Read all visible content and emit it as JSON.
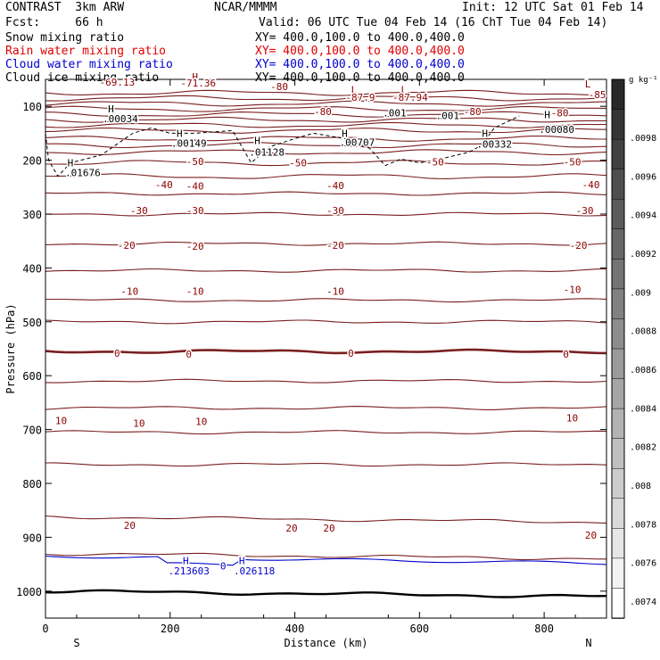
{
  "header": {
    "title_left": "CONTRAST  3km ARW",
    "center": "NCAR/MMMM",
    "init": "Init: 12 UTC Sat 01 Feb 14",
    "fcst": "Fcst:     66 h",
    "valid": "Valid: 06 UTC Tue 04 Feb 14 (16 ChT Tue 04 Feb 14)",
    "fields": [
      {
        "name": "Snow mixing ratio",
        "xy": "XY= 400.0,100.0 to 400.0,400.0",
        "color": "#000000"
      },
      {
        "name": "Rain water mixing ratio",
        "xy": "XY= 400.0,100.0 to 400.0,400.0",
        "color": "#e00000"
      },
      {
        "name": "Cloud water mixing ratio",
        "xy": "XY= 400.0,100.0 to 400.0,400.0",
        "color": "#0000cc"
      },
      {
        "name": "Cloud ice mixing ratio",
        "xy": "XY= 400.0,100.0 to 400.0,400.0",
        "color": "#000000"
      }
    ]
  },
  "chart_data": {
    "type": "contour",
    "xlabel": "Distance (km)",
    "ylabel": "Pressure (hPa)",
    "xlim": [
      0,
      900
    ],
    "ylim": [
      1050,
      50
    ],
    "x_ticks": [
      0,
      200,
      400,
      600,
      800
    ],
    "y_ticks": [
      100,
      200,
      300,
      400,
      500,
      600,
      700,
      800,
      900,
      1000
    ],
    "x_endpoints": {
      "left": "S",
      "right": "N"
    },
    "colorbar": {
      "unit": "g kg⁻¹",
      "labels": [
        ".0098",
        ".0096",
        ".0094",
        ".0092",
        ".009",
        ".0088",
        ".0086",
        ".0084",
        ".0082",
        ".008",
        ".0078",
        ".0076",
        ".0074"
      ]
    },
    "contour_labels": [
      {
        "text": "-69.13",
        "x": 115,
        "p": 55,
        "color": "#8b0000"
      },
      {
        "text": "H",
        "x": 240,
        "p": 45,
        "color": "#8b0000"
      },
      {
        "text": "-71.36",
        "x": 245,
        "p": 57,
        "color": "#8b0000"
      },
      {
        "text": "-80",
        "x": 375,
        "p": 63,
        "color": "#8b0000"
      },
      {
        "text": "L",
        "x": 495,
        "p": 69,
        "color": "#8b0000"
      },
      {
        "text": "-87.9",
        "x": 505,
        "p": 83,
        "color": "#8b0000"
      },
      {
        "text": "L",
        "x": 575,
        "p": 69,
        "color": "#8b0000"
      },
      {
        "text": "-87.94",
        "x": 585,
        "p": 83,
        "color": "#8b0000"
      },
      {
        "text": "L",
        "x": 870,
        "p": 58,
        "color": "#8b0000"
      },
      {
        "text": "-85",
        "x": 885,
        "p": 78,
        "color": "#8b0000"
      },
      {
        "text": "-80",
        "x": 445,
        "p": 110,
        "color": "#8b0000"
      },
      {
        "text": "-80",
        "x": 685,
        "p": 110,
        "color": "#8b0000"
      },
      {
        "text": "-80",
        "x": 825,
        "p": 112,
        "color": "#8b0000"
      },
      {
        "text": "-50",
        "x": 240,
        "p": 202,
        "color": "#8b0000"
      },
      {
        "text": "-50",
        "x": 405,
        "p": 205,
        "color": "#8b0000"
      },
      {
        "text": "-50",
        "x": 625,
        "p": 203,
        "color": "#8b0000"
      },
      {
        "text": "-50",
        "x": 845,
        "p": 203,
        "color": "#8b0000"
      },
      {
        "text": "-40",
        "x": 190,
        "p": 245,
        "color": "#8b0000"
      },
      {
        "text": "-40",
        "x": 240,
        "p": 248,
        "color": "#8b0000"
      },
      {
        "text": "-40",
        "x": 465,
        "p": 247,
        "color": "#8b0000"
      },
      {
        "text": "-40",
        "x": 875,
        "p": 245,
        "color": "#8b0000"
      },
      {
        "text": "-30",
        "x": 150,
        "p": 293,
        "color": "#8b0000"
      },
      {
        "text": "-30",
        "x": 240,
        "p": 293,
        "color": "#8b0000"
      },
      {
        "text": "-30",
        "x": 465,
        "p": 293,
        "color": "#8b0000"
      },
      {
        "text": "-30",
        "x": 865,
        "p": 293,
        "color": "#8b0000"
      },
      {
        "text": "-20",
        "x": 130,
        "p": 358,
        "color": "#8b0000"
      },
      {
        "text": "-20",
        "x": 240,
        "p": 360,
        "color": "#8b0000"
      },
      {
        "text": "-20",
        "x": 465,
        "p": 358,
        "color": "#8b0000"
      },
      {
        "text": "-20",
        "x": 855,
        "p": 358,
        "color": "#8b0000"
      },
      {
        "text": "-10",
        "x": 135,
        "p": 443,
        "color": "#8b0000"
      },
      {
        "text": "-10",
        "x": 240,
        "p": 443,
        "color": "#8b0000"
      },
      {
        "text": "-10",
        "x": 465,
        "p": 443,
        "color": "#8b0000"
      },
      {
        "text": "-10",
        "x": 845,
        "p": 440,
        "color": "#8b0000"
      },
      {
        "text": "0",
        "x": 115,
        "p": 558,
        "color": "#8b0000"
      },
      {
        "text": "0",
        "x": 230,
        "p": 560,
        "color": "#8b0000"
      },
      {
        "text": "0",
        "x": 490,
        "p": 558,
        "color": "#8b0000"
      },
      {
        "text": "0",
        "x": 835,
        "p": 560,
        "color": "#8b0000"
      },
      {
        "text": "10",
        "x": 25,
        "p": 683,
        "color": "#8b0000"
      },
      {
        "text": "10",
        "x": 150,
        "p": 688,
        "color": "#8b0000"
      },
      {
        "text": "10",
        "x": 250,
        "p": 685,
        "color": "#8b0000"
      },
      {
        "text": "10",
        "x": 845,
        "p": 678,
        "color": "#8b0000"
      },
      {
        "text": "20",
        "x": 135,
        "p": 878,
        "color": "#8b0000"
      },
      {
        "text": "20",
        "x": 395,
        "p": 883,
        "color": "#8b0000"
      },
      {
        "text": "20",
        "x": 455,
        "p": 883,
        "color": "#8b0000"
      },
      {
        "text": "20",
        "x": 875,
        "p": 896,
        "color": "#8b0000"
      },
      {
        "text": "H",
        "x": 105,
        "p": 105,
        "color": "#000000"
      },
      {
        "text": ".00034",
        "x": 120,
        "p": 123,
        "color": "#000000"
      },
      {
        "text": "H",
        "x": 215,
        "p": 150,
        "color": "#000000"
      },
      {
        "text": ".00149",
        "x": 230,
        "p": 168,
        "color": "#000000"
      },
      {
        "text": "H",
        "x": 340,
        "p": 163,
        "color": "#000000"
      },
      {
        "text": ".01128",
        "x": 355,
        "p": 185,
        "color": "#000000"
      },
      {
        "text": "H",
        "x": 480,
        "p": 150,
        "color": "#000000"
      },
      {
        "text": ".00707",
        "x": 500,
        "p": 167,
        "color": "#000000"
      },
      {
        "text": "H",
        "x": 705,
        "p": 150,
        "color": "#000000"
      },
      {
        "text": ".00332",
        "x": 720,
        "p": 170,
        "color": "#000000"
      },
      {
        "text": "H",
        "x": 805,
        "p": 115,
        "color": "#000000"
      },
      {
        "text": ".00080",
        "x": 820,
        "p": 143,
        "color": "#000000"
      },
      {
        "text": "H",
        "x": 40,
        "p": 205,
        "color": "#000000"
      },
      {
        "text": ".01676",
        "x": 60,
        "p": 223,
        "color": "#000000"
      },
      {
        "text": ".001",
        "x": 560,
        "p": 112,
        "color": "#000000"
      },
      {
        "text": ".001",
        "x": 645,
        "p": 117,
        "color": "#000000"
      },
      {
        "text": "H",
        "x": 225,
        "p": 943,
        "color": "#0000cc"
      },
      {
        "text": ".213603",
        "x": 230,
        "p": 962,
        "color": "#0000cc"
      },
      {
        "text": "H",
        "x": 315,
        "p": 943,
        "color": "#0000cc"
      },
      {
        "text": ".026118",
        "x": 335,
        "p": 962,
        "color": "#0000cc"
      },
      {
        "text": "0",
        "x": 285,
        "p": 953,
        "color": "#0000cc"
      }
    ]
  }
}
